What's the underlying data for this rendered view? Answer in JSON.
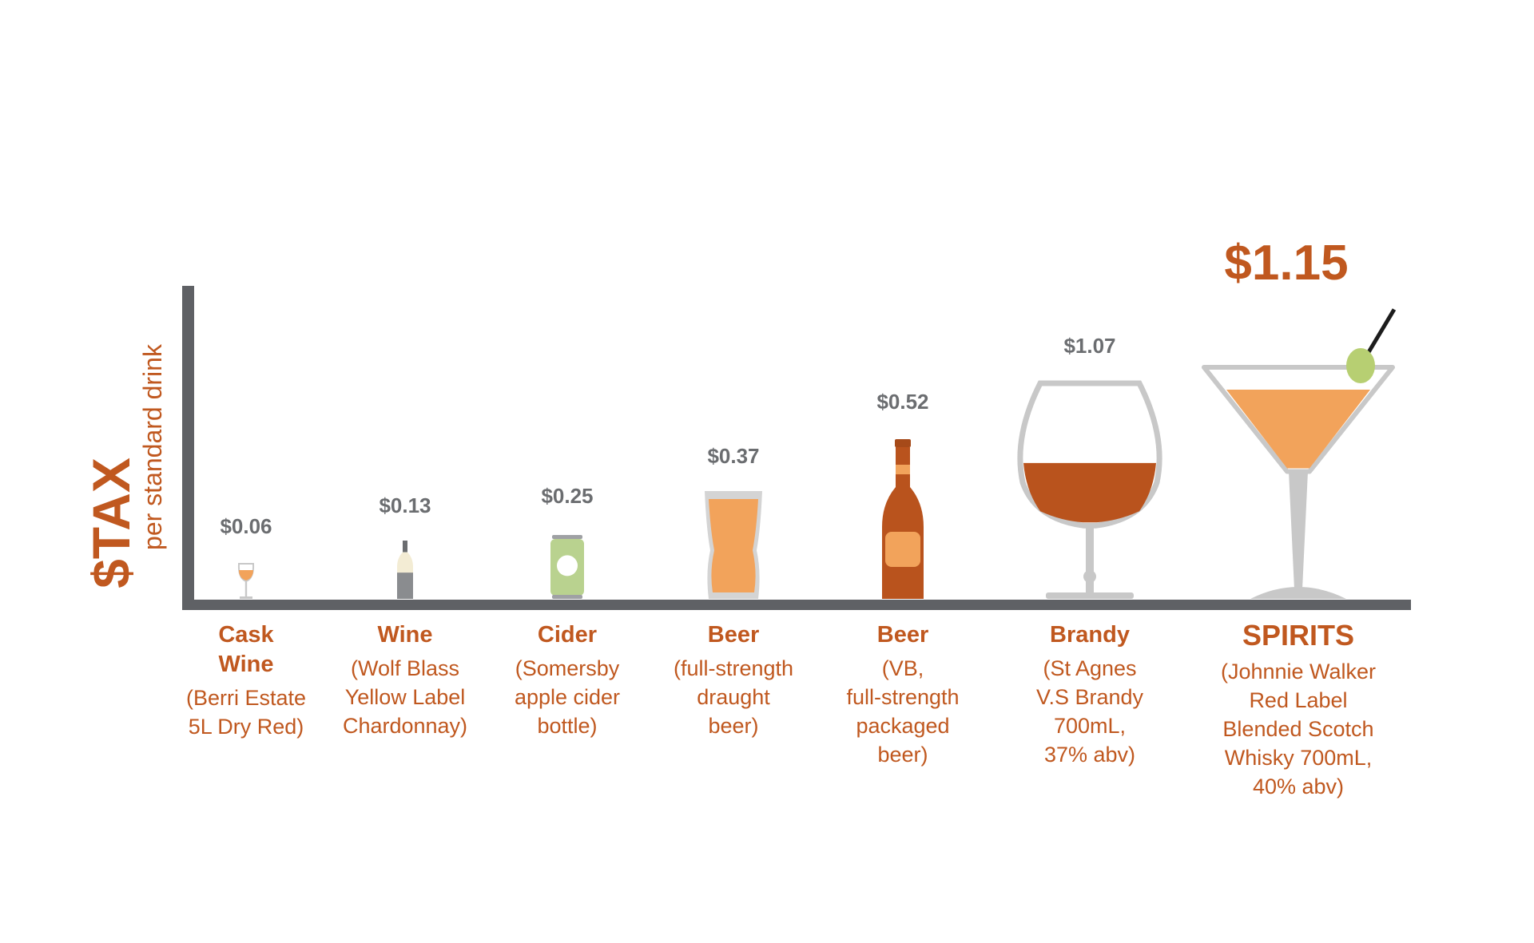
{
  "colors": {
    "accent": "#c0581f",
    "axis": "#5f6165",
    "price_text": "#6b6d70",
    "liquid_light": "#f2a35b",
    "liquid_dark": "#b9531d",
    "glass": "#c8c8c8",
    "can": "#b9d28f",
    "olive": "#b7cf72"
  },
  "y_axis": {
    "title": "$TAX",
    "subtitle": "per standard drink"
  },
  "chart_data": {
    "type": "bar",
    "title": "",
    "ylabel": "$TAX per standard drink",
    "categories": [
      "Cask Wine",
      "Wine",
      "Cider",
      "Beer",
      "Beer",
      "Brandy",
      "SPIRITS"
    ],
    "values": [
      0.06,
      0.13,
      0.25,
      0.37,
      0.52,
      1.07,
      1.15
    ],
    "price_labels": [
      "$0.06",
      "$0.13",
      "$0.25",
      "$0.37",
      "$0.52",
      "$1.07",
      "$1.15"
    ],
    "icons": [
      "wine-glass-icon",
      "wine-bottle-icon",
      "cider-can-icon",
      "pint-glass-icon",
      "beer-bottle-icon",
      "brandy-glass-icon",
      "martini-glass-icon"
    ],
    "items": [
      {
        "category_lines": [
          "Cask",
          "Wine"
        ],
        "desc_lines": [
          "(Berri Estate",
          "5L Dry Red)"
        ]
      },
      {
        "category_lines": [
          "Wine"
        ],
        "desc_lines": [
          "(Wolf Blass",
          "Yellow Label",
          "Chardonnay)"
        ]
      },
      {
        "category_lines": [
          "Cider"
        ],
        "desc_lines": [
          "(Somersby",
          "apple cider",
          "bottle)"
        ]
      },
      {
        "category_lines": [
          "Beer"
        ],
        "desc_lines": [
          "(full-strength",
          "draught",
          "beer)"
        ]
      },
      {
        "category_lines": [
          "Beer"
        ],
        "desc_lines": [
          "(VB,",
          "full-strength",
          "packaged",
          "beer)"
        ]
      },
      {
        "category_lines": [
          "Brandy"
        ],
        "desc_lines": [
          "(St Agnes",
          "V.S Brandy",
          "700mL,",
          "37% abv)"
        ]
      },
      {
        "category_lines": [
          "SPIRITS"
        ],
        "desc_lines": [
          "(Johnnie Walker",
          "Red Label",
          "Blended Scotch",
          "Whisky 700mL,",
          "40% abv)"
        ]
      }
    ],
    "highlight_index": 6
  }
}
